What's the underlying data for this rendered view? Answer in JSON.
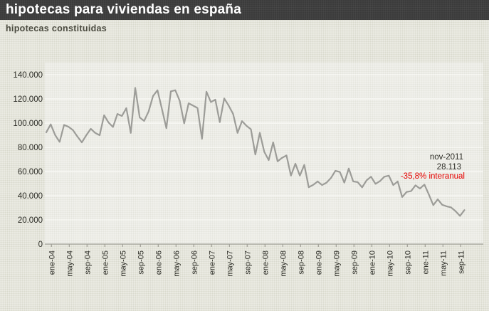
{
  "window": {
    "title": "hipotecas para viviendas en españa"
  },
  "chart": {
    "subtitle": "hipotecas constituidas"
  },
  "colors": {
    "page_bg": "#eaeae2",
    "titlebar_bg": "#3b3b3b",
    "title_text": "#ffffff",
    "subtitle_text": "#4a4a3f",
    "gridline": "#fafaf6",
    "axis": "#a09f97",
    "tick_label": "#2c2c26",
    "series_line": "#9c9c98",
    "annotation_text": "#2c2c26",
    "annotation_red": "#e60000",
    "plot_bg": "rgba(255,255,255,0.30)"
  },
  "chart_data": {
    "type": "line",
    "title": "hipotecas constituidas",
    "xlabel": "",
    "ylabel": "",
    "grid": true,
    "legend": "none",
    "start": "ene-04",
    "end": "nov-11",
    "n_points": 95,
    "months_per_point": 1,
    "categories": [
      "ene-04",
      "may-04",
      "sep-04",
      "ene-05",
      "may-05",
      "sep-05",
      "ene-06",
      "may-06",
      "sep-06",
      "ene-07",
      "may-07",
      "sep-07",
      "ene-08",
      "may-08",
      "sep-08",
      "ene-09",
      "may-09",
      "sep-09",
      "ene-10",
      "may-10",
      "sep-10",
      "ene-11",
      "may-11",
      "sep-11"
    ],
    "xtick_every_months": 4,
    "ylim": [
      0,
      140000
    ],
    "ytick_values": [
      0,
      20000,
      40000,
      60000,
      80000,
      100000,
      120000,
      140000
    ],
    "ytick_labels": [
      "0",
      "20.000",
      "40.000",
      "60.000",
      "80.000",
      "100.000",
      "120.000",
      "140.000"
    ],
    "values": [
      92400,
      99000,
      90100,
      84500,
      98500,
      97000,
      94200,
      88900,
      84100,
      90000,
      95300,
      91900,
      90000,
      106500,
      100500,
      96800,
      107600,
      105900,
      112400,
      91900,
      129100,
      104700,
      101800,
      109600,
      122400,
      127200,
      111700,
      95800,
      126300,
      127200,
      118400,
      99800,
      116400,
      114500,
      112500,
      87000,
      126000,
      117400,
      119400,
      100800,
      120400,
      114500,
      107600,
      91900,
      101700,
      97800,
      94900,
      74000,
      92000,
      76300,
      69400,
      84100,
      68400,
      71300,
      73300,
      56600,
      66500,
      56600,
      65500,
      47000,
      49000,
      51800,
      48800,
      50800,
      54700,
      60600,
      59600,
      50800,
      62500,
      51800,
      51200,
      46900,
      52700,
      55700,
      49800,
      52000,
      55700,
      56600,
      48800,
      51800,
      38900,
      43100,
      43800,
      48600,
      45900,
      49200,
      41000,
      32200,
      37000,
      32500,
      31200,
      30300,
      27200,
      23300,
      28113
    ],
    "annotation": {
      "line1": "nov-2011",
      "line2": "28.113",
      "line3": "-35,8% interanual",
      "last_point_label": "nov-2011",
      "last_point_value": 28113,
      "yoy_change": "-35,8% interanual"
    }
  }
}
